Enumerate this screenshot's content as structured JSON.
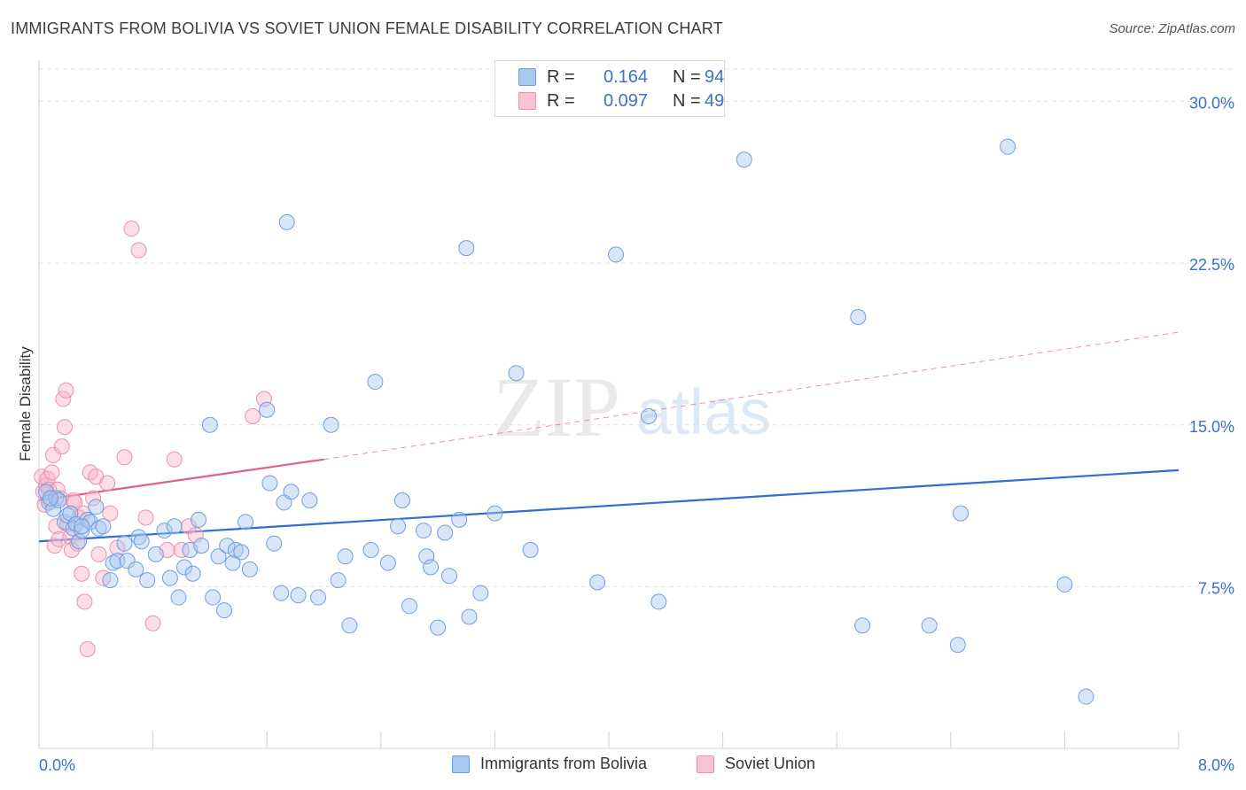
{
  "title": "IMMIGRANTS FROM BOLIVIA VS SOVIET UNION FEMALE DISABILITY CORRELATION CHART",
  "source": "Source: ZipAtlas.com",
  "watermark_zip": "ZIP",
  "watermark_atlas": "atlas",
  "legend": {
    "rows": [
      {
        "r_label": "R =",
        "r_value": "0.164",
        "n_label": "N =",
        "n_value": "94"
      },
      {
        "r_label": "R =",
        "r_value": "0.097",
        "n_label": "N =",
        "n_value": "49"
      }
    ]
  },
  "bottom_legend": {
    "series_a": "Immigrants from Bolivia",
    "series_b": "Soviet Union"
  },
  "colors": {
    "blue_fill": "#a8c8f0",
    "blue_stroke": "#6f9fe0",
    "blue_line": "#2b6fd0",
    "pink_fill": "#f7b6c9",
    "pink_stroke": "#ee8faf",
    "pink_line": "#e0608d",
    "axis_text": "#3a72c8",
    "grid": "#e2e2e2"
  },
  "chart_data": {
    "type": "scatter",
    "title": "IMMIGRANTS FROM BOLIVIA VS SOVIET UNION FEMALE DISABILITY CORRELATION CHART",
    "xlabel": "",
    "ylabel": "Female Disability",
    "xlim": [
      0,
      8.0
    ],
    "ylim": [
      0,
      31.5
    ],
    "x_tick_labels": [
      "0.0%",
      "8.0%"
    ],
    "y_ticks": [
      7.5,
      15.0,
      22.5,
      30.0
    ],
    "y_tick_labels": [
      "7.5%",
      "15.0%",
      "22.5%",
      "30.0%"
    ],
    "grid": true,
    "legend_position": "top-center",
    "series": [
      {
        "name": "Immigrants from Bolivia",
        "color": "#a8c8f0",
        "trend": {
          "x": [
            0.0,
            8.0
          ],
          "y": [
            9.6,
            12.9
          ],
          "style": "solid"
        },
        "points": [
          [
            0.05,
            11.9
          ],
          [
            0.07,
            11.4
          ],
          [
            0.1,
            11.1
          ],
          [
            0.12,
            11.6
          ],
          [
            0.14,
            11.5
          ],
          [
            0.18,
            10.5
          ],
          [
            0.2,
            10.8
          ],
          [
            0.22,
            10.9
          ],
          [
            0.24,
            10.2
          ],
          [
            0.26,
            10.4
          ],
          [
            0.28,
            9.6
          ],
          [
            0.3,
            10.1
          ],
          [
            0.34,
            10.6
          ],
          [
            0.36,
            10.5
          ],
          [
            0.4,
            11.2
          ],
          [
            0.42,
            10.2
          ],
          [
            0.45,
            10.3
          ],
          [
            0.5,
            7.8
          ],
          [
            0.52,
            8.6
          ],
          [
            0.55,
            8.7
          ],
          [
            0.6,
            9.5
          ],
          [
            0.62,
            8.7
          ],
          [
            0.68,
            8.3
          ],
          [
            0.7,
            9.8
          ],
          [
            0.72,
            9.6
          ],
          [
            0.76,
            7.8
          ],
          [
            0.82,
            9.0
          ],
          [
            0.88,
            10.1
          ],
          [
            0.92,
            7.9
          ],
          [
            0.95,
            10.3
          ],
          [
            0.98,
            7.0
          ],
          [
            1.02,
            8.4
          ],
          [
            1.06,
            9.2
          ],
          [
            1.08,
            8.1
          ],
          [
            1.12,
            10.6
          ],
          [
            1.14,
            9.4
          ],
          [
            1.2,
            15.0
          ],
          [
            1.22,
            7.0
          ],
          [
            1.26,
            8.9
          ],
          [
            1.3,
            6.4
          ],
          [
            1.32,
            9.4
          ],
          [
            1.36,
            8.6
          ],
          [
            1.38,
            9.2
          ],
          [
            1.42,
            9.1
          ],
          [
            1.45,
            10.5
          ],
          [
            1.48,
            8.3
          ],
          [
            1.6,
            15.7
          ],
          [
            1.62,
            12.3
          ],
          [
            1.65,
            9.5
          ],
          [
            1.7,
            7.2
          ],
          [
            1.72,
            11.4
          ],
          [
            1.74,
            24.4
          ],
          [
            1.77,
            11.9
          ],
          [
            1.82,
            7.1
          ],
          [
            1.9,
            11.5
          ],
          [
            1.96,
            7.0
          ],
          [
            2.05,
            15.0
          ],
          [
            2.1,
            7.8
          ],
          [
            2.15,
            8.9
          ],
          [
            2.18,
            5.7
          ],
          [
            2.33,
            9.2
          ],
          [
            2.36,
            17.0
          ],
          [
            2.45,
            8.6
          ],
          [
            2.52,
            10.3
          ],
          [
            2.55,
            11.5
          ],
          [
            2.6,
            6.6
          ],
          [
            2.7,
            10.1
          ],
          [
            2.72,
            8.9
          ],
          [
            2.75,
            8.4
          ],
          [
            2.8,
            5.6
          ],
          [
            2.85,
            10.0
          ],
          [
            2.88,
            8.0
          ],
          [
            2.95,
            10.6
          ],
          [
            3.0,
            23.2
          ],
          [
            3.02,
            6.1
          ],
          [
            3.1,
            7.2
          ],
          [
            3.2,
            10.9
          ],
          [
            3.35,
            17.4
          ],
          [
            3.45,
            9.2
          ],
          [
            3.92,
            7.7
          ],
          [
            4.05,
            22.9
          ],
          [
            4.28,
            15.4
          ],
          [
            4.35,
            6.8
          ],
          [
            4.95,
            27.3
          ],
          [
            5.75,
            20.0
          ],
          [
            5.78,
            5.7
          ],
          [
            6.25,
            5.7
          ],
          [
            6.45,
            4.8
          ],
          [
            6.47,
            10.9
          ],
          [
            6.8,
            27.9
          ],
          [
            7.2,
            7.6
          ],
          [
            7.35,
            2.4
          ],
          [
            0.3,
            10.3
          ],
          [
            0.08,
            11.6
          ]
        ]
      },
      {
        "name": "Soviet Union",
        "color": "#f7b6c9",
        "trend": {
          "x": [
            0.0,
            2.0,
            8.0
          ],
          "y": [
            11.5,
            13.4,
            19.3
          ],
          "style": "solid-then-dashed"
        },
        "points": [
          [
            0.02,
            12.6
          ],
          [
            0.03,
            11.9
          ],
          [
            0.04,
            11.3
          ],
          [
            0.05,
            12.2
          ],
          [
            0.06,
            12.5
          ],
          [
            0.07,
            12.0
          ],
          [
            0.08,
            11.5
          ],
          [
            0.09,
            12.8
          ],
          [
            0.1,
            13.6
          ],
          [
            0.11,
            9.4
          ],
          [
            0.12,
            10.3
          ],
          [
            0.13,
            12.0
          ],
          [
            0.14,
            9.7
          ],
          [
            0.15,
            11.6
          ],
          [
            0.16,
            14.0
          ],
          [
            0.17,
            16.2
          ],
          [
            0.18,
            14.9
          ],
          [
            0.19,
            16.6
          ],
          [
            0.2,
            10.4
          ],
          [
            0.22,
            9.8
          ],
          [
            0.23,
            9.2
          ],
          [
            0.24,
            11.5
          ],
          [
            0.25,
            11.4
          ],
          [
            0.27,
            9.5
          ],
          [
            0.28,
            10.7
          ],
          [
            0.3,
            8.1
          ],
          [
            0.31,
            10.9
          ],
          [
            0.32,
            6.8
          ],
          [
            0.34,
            4.6
          ],
          [
            0.36,
            12.8
          ],
          [
            0.38,
            11.6
          ],
          [
            0.4,
            12.6
          ],
          [
            0.42,
            9.0
          ],
          [
            0.45,
            7.9
          ],
          [
            0.48,
            12.3
          ],
          [
            0.5,
            10.9
          ],
          [
            0.55,
            9.3
          ],
          [
            0.6,
            13.5
          ],
          [
            0.65,
            24.1
          ],
          [
            0.7,
            23.1
          ],
          [
            0.75,
            10.7
          ],
          [
            0.8,
            5.8
          ],
          [
            0.9,
            9.2
          ],
          [
            0.95,
            13.4
          ],
          [
            1.0,
            9.2
          ],
          [
            1.05,
            10.3
          ],
          [
            1.1,
            9.9
          ],
          [
            1.5,
            15.4
          ],
          [
            1.58,
            16.2
          ]
        ]
      }
    ]
  }
}
